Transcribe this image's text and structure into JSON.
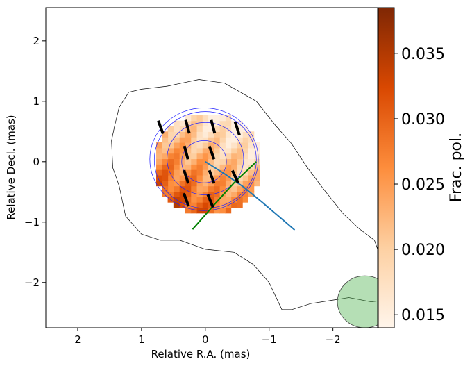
{
  "chart_data": {
    "type": "heatmap",
    "xlabel": "Relative R.A. (mas)",
    "ylabel": "Relative Decl. (mas)",
    "xlim": [
      2.5,
      -2.7
    ],
    "ylim": [
      -2.75,
      2.55
    ],
    "x_ticks": [
      2,
      1,
      0,
      -1,
      -2
    ],
    "y_ticks": [
      2,
      1,
      0,
      -1,
      -2
    ],
    "x_tick_labels": [
      "2",
      "1",
      "0",
      "−1",
      "−2"
    ],
    "y_tick_labels": [
      "2",
      "1",
      "0",
      "−1",
      "−2"
    ],
    "colorbar": {
      "label": "Frac. pol.",
      "range": [
        0.014,
        0.0385
      ],
      "ticks": [
        0.015,
        0.02,
        0.025,
        0.03,
        0.035
      ],
      "tick_labels": [
        "0.015",
        "0.020",
        "0.025",
        "0.030",
        "0.035"
      ],
      "colormap": "Oranges",
      "color_stops": [
        "#fff5eb",
        "#fdd0a2",
        "#fd8d3c",
        "#d94801",
        "#7f2704"
      ]
    },
    "fractional_polarization_region": {
      "center": [
        0.0,
        0.0
      ],
      "radius": 0.85,
      "value_range": [
        0.015,
        0.038
      ]
    },
    "evpa_sticks": [
      {
        "x": 0.7,
        "y": 0.57,
        "angle_deg": 20
      },
      {
        "x": 0.28,
        "y": 0.58,
        "angle_deg": 15
      },
      {
        "x": -0.12,
        "y": 0.58,
        "angle_deg": 15
      },
      {
        "x": -0.5,
        "y": 0.55,
        "angle_deg": 18
      },
      {
        "x": 0.3,
        "y": 0.15,
        "angle_deg": 15
      },
      {
        "x": -0.1,
        "y": 0.15,
        "angle_deg": 20
      },
      {
        "x": 0.3,
        "y": -0.25,
        "angle_deg": 18
      },
      {
        "x": -0.1,
        "y": -0.25,
        "angle_deg": 20
      },
      {
        "x": -0.47,
        "y": -0.25,
        "angle_deg": 25
      },
      {
        "x": 0.3,
        "y": -0.63,
        "angle_deg": 20
      },
      {
        "x": -0.08,
        "y": -0.65,
        "angle_deg": 22
      }
    ],
    "stokes_i_outer_contour": [
      [
        1.0,
        1.2
      ],
      [
        0.6,
        1.25
      ],
      [
        0.1,
        1.36
      ],
      [
        -0.3,
        1.3
      ],
      [
        -0.8,
        1.0
      ],
      [
        -1.1,
        0.6
      ],
      [
        -1.35,
        0.3
      ],
      [
        -1.6,
        -0.1
      ],
      [
        -1.85,
        -0.45
      ],
      [
        -2.15,
        -0.85
      ],
      [
        -2.4,
        -1.1
      ],
      [
        -2.65,
        -1.3
      ],
      [
        -2.75,
        -1.6
      ],
      [
        -2.75,
        -2.3
      ],
      [
        -2.6,
        -2.32
      ],
      [
        -2.25,
        -2.25
      ],
      [
        -1.95,
        -2.3
      ],
      [
        -1.65,
        -2.35
      ],
      [
        -1.35,
        -2.45
      ],
      [
        -1.2,
        -2.45
      ],
      [
        -1.0,
        -2.0
      ],
      [
        -0.75,
        -1.7
      ],
      [
        -0.45,
        -1.5
      ],
      [
        0.0,
        -1.45
      ],
      [
        0.4,
        -1.3
      ],
      [
        0.7,
        -1.3
      ],
      [
        1.0,
        -1.2
      ],
      [
        1.25,
        -0.9
      ],
      [
        1.35,
        -0.4
      ],
      [
        1.45,
        -0.1
      ],
      [
        1.47,
        0.35
      ],
      [
        1.42,
        0.6
      ],
      [
        1.35,
        0.9
      ],
      [
        1.2,
        1.15
      ],
      [
        1.0,
        1.2
      ]
    ],
    "stokes_i_inner_contours": [
      {
        "cx": 0.02,
        "cy": 0.04,
        "r": 0.85
      },
      {
        "cx": 0.0,
        "cy": 0.03,
        "r": 0.8
      },
      {
        "cx": 0.0,
        "cy": 0.05,
        "r": 0.6
      },
      {
        "cx": 0.02,
        "cy": 0.0,
        "r": 0.35
      }
    ],
    "blue_curve": [
      [
        0.0,
        0.0
      ],
      [
        -0.3,
        -0.2
      ],
      [
        -0.6,
        -0.42
      ],
      [
        -0.9,
        -0.68
      ],
      [
        -1.2,
        -0.95
      ],
      [
        -1.4,
        -1.13
      ]
    ],
    "green_line": [
      [
        0.2,
        -1.12
      ],
      [
        -0.15,
        -0.7
      ],
      [
        -0.45,
        -0.35
      ],
      [
        -0.8,
        0.0
      ]
    ],
    "beam": {
      "cx": -2.5,
      "cy": -2.32,
      "r": 0.43,
      "color": "#5cb85c"
    },
    "colors": {
      "sticks": "#000000",
      "inner_contours": "#1f1fff",
      "outer_contour": "#000000",
      "blue_curve": "#1f77b4",
      "green_line": "#008000"
    }
  }
}
